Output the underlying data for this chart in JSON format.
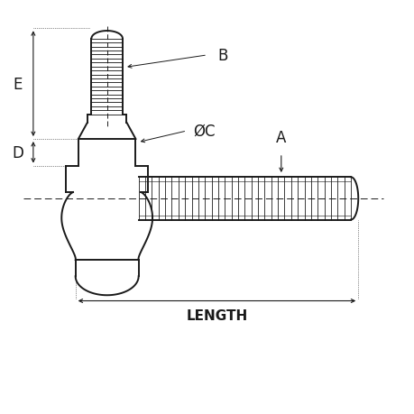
{
  "bg_color": "#ffffff",
  "line_color": "#1a1a1a",
  "line_width": 1.4,
  "thin_line": 0.7,
  "fig_size": [
    4.6,
    4.6
  ],
  "dpi": 100,
  "labels": {
    "A": "A",
    "B": "B",
    "C": "ØC",
    "D": "D",
    "E": "E",
    "LENGTH": "LENGTH"
  }
}
